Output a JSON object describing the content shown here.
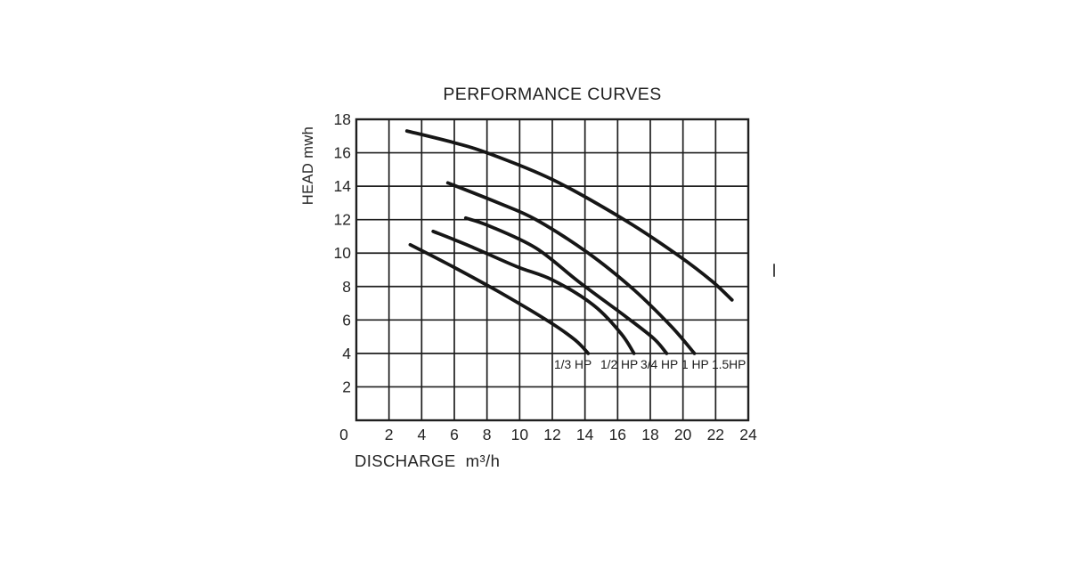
{
  "page": {
    "background": "#ffffff",
    "text_color": "#222222"
  },
  "chart_data": {
    "type": "line",
    "title": "PERFORMANCE CURVES",
    "xlabel": "DISCHARGE  m³/h",
    "ylabel": "HEAD mwh",
    "xlim": [
      0,
      24
    ],
    "ylim": [
      0,
      18
    ],
    "x_ticks": [
      0,
      2,
      4,
      6,
      8,
      10,
      12,
      14,
      16,
      18,
      20,
      22,
      24
    ],
    "y_ticks": [
      0,
      2,
      4,
      6,
      8,
      10,
      12,
      14,
      16,
      18
    ],
    "grid": true,
    "grid_color": "#1f1f1f",
    "line_color": "#161616",
    "legend_position": "inline-labels-below-curve-ends",
    "series": [
      {
        "name": "1/3 HP",
        "points": [
          [
            3.3,
            10.5
          ],
          [
            5.5,
            9.4
          ],
          [
            8.7,
            7.7
          ],
          [
            11.8,
            5.9
          ],
          [
            13.4,
            4.8
          ],
          [
            14.2,
            4.0
          ]
        ]
      },
      {
        "name": "1/2 HP",
        "points": [
          [
            4.7,
            11.3
          ],
          [
            7.0,
            10.4
          ],
          [
            9.8,
            9.2
          ],
          [
            12.0,
            8.4
          ],
          [
            14.5,
            6.9
          ],
          [
            16.2,
            5.2
          ],
          [
            17.0,
            4.0
          ]
        ]
      },
      {
        "name": "3/4 HP",
        "points": [
          [
            6.7,
            12.1
          ],
          [
            8.2,
            11.6
          ],
          [
            11.0,
            10.3
          ],
          [
            13.6,
            8.3
          ],
          [
            16.5,
            6.2
          ],
          [
            18.2,
            4.9
          ],
          [
            19.0,
            4.0
          ]
        ]
      },
      {
        "name": "1 HP",
        "points": [
          [
            5.6,
            14.2
          ],
          [
            8.7,
            13.0
          ],
          [
            11.0,
            12.0
          ],
          [
            14.2,
            10.0
          ],
          [
            17.0,
            7.8
          ],
          [
            19.3,
            5.6
          ],
          [
            20.7,
            4.0
          ]
        ]
      },
      {
        "name": "1.5 HP",
        "points": [
          [
            3.1,
            17.3
          ],
          [
            6.0,
            16.6
          ],
          [
            8.0,
            16.0
          ],
          [
            12.0,
            14.4
          ],
          [
            16.4,
            12.0
          ],
          [
            19.8,
            9.8
          ],
          [
            21.8,
            8.3
          ],
          [
            23.0,
            7.2
          ]
        ]
      }
    ],
    "curve_labels": [
      "1/3 HP",
      "1/2 HP",
      "3/4 HP",
      "1 HP",
      "1.5HP"
    ]
  }
}
